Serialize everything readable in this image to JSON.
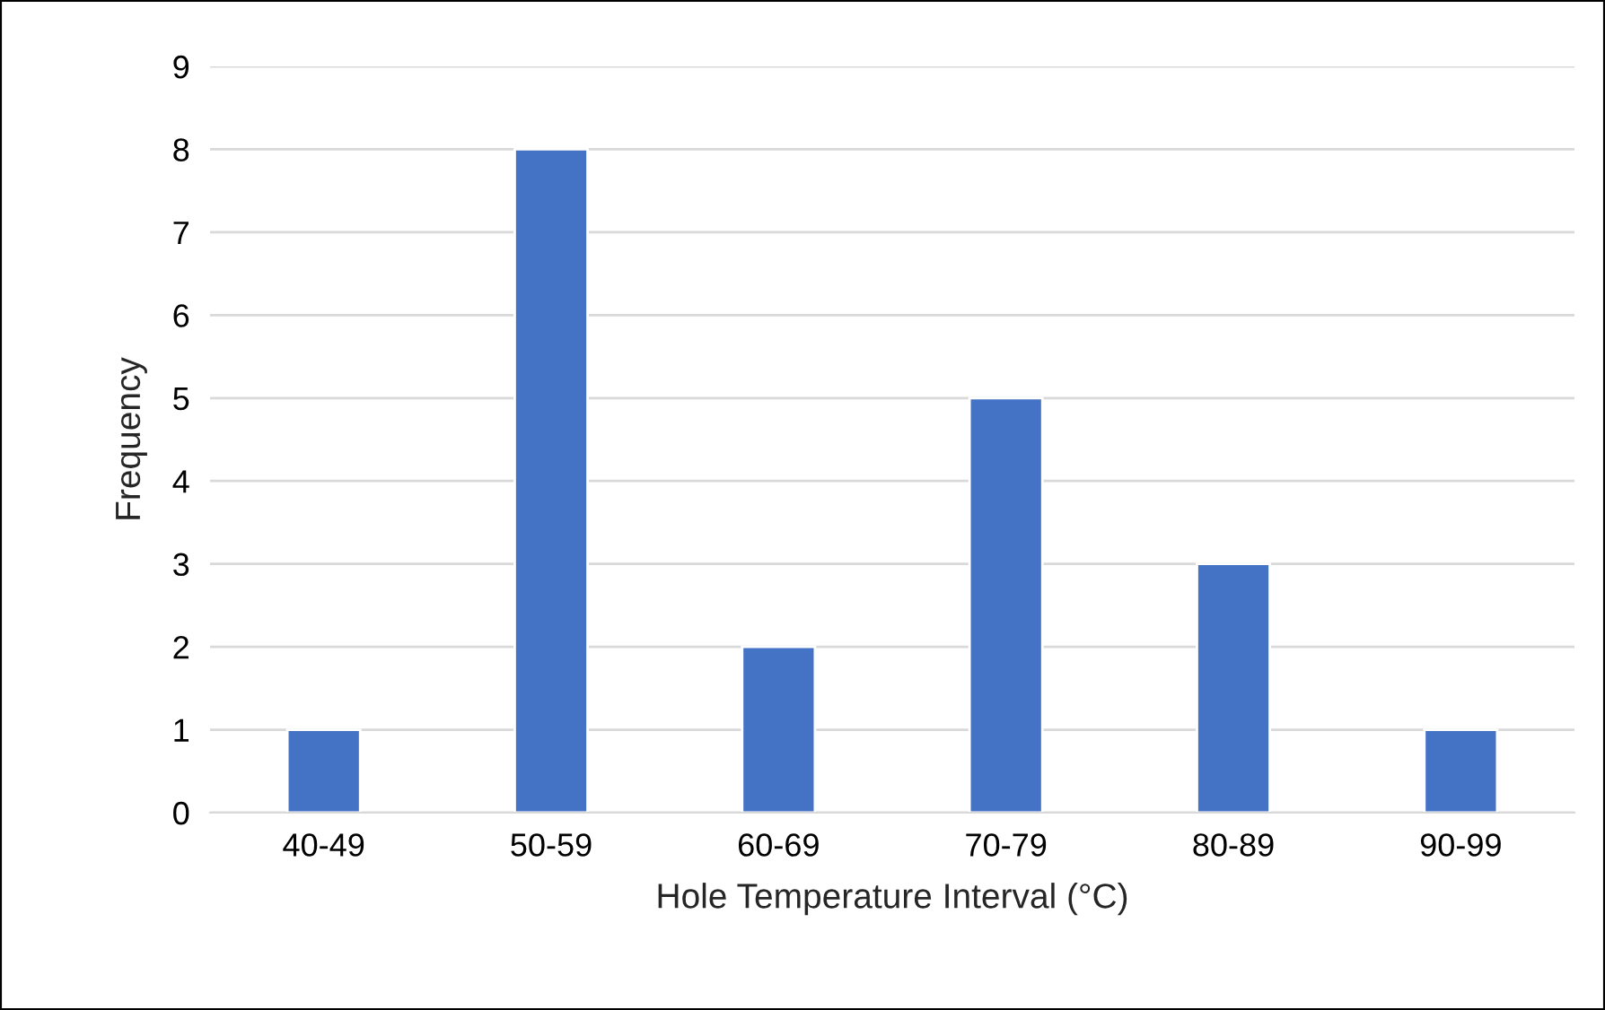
{
  "chart_data": {
    "type": "bar",
    "xlabel": "Hole Temperature Interval (°C)",
    "ylabel": "Frequency",
    "categories": [
      "40-49",
      "50-59",
      "60-69",
      "70-79",
      "80-89",
      "90-99"
    ],
    "values": [
      1,
      8,
      2,
      5,
      3,
      1
    ],
    "color": "#4472c4",
    "ylim": [
      0,
      9
    ],
    "yticks": [
      0,
      1,
      2,
      3,
      4,
      5,
      6,
      7,
      8,
      9
    ],
    "grid": "y",
    "legend": false
  }
}
